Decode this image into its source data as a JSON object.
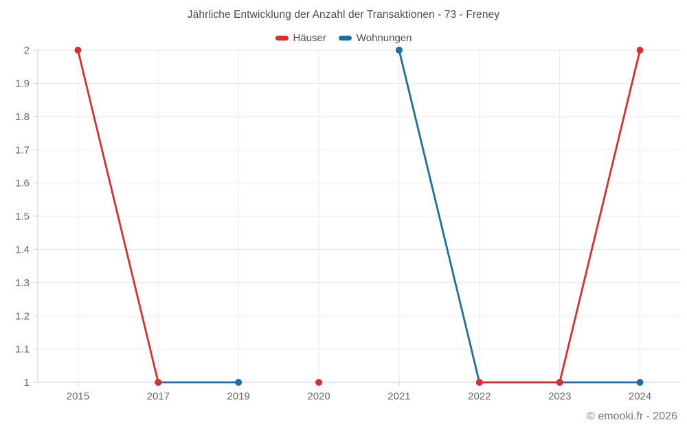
{
  "chart_data": {
    "type": "line",
    "title": "Jährliche Entwicklung der Anzahl der Transaktionen - 73 - Freney",
    "xlabel": "",
    "ylabel": "",
    "categories": [
      "2015",
      "2017",
      "2019",
      "2020",
      "2021",
      "2022",
      "2023",
      "2024"
    ],
    "series": [
      {
        "name": "Häuser",
        "color": "#d7302f",
        "values": [
          2,
          1,
          null,
          1,
          null,
          1,
          1,
          2
        ]
      },
      {
        "name": "Wohnungen",
        "color": "#1c6ea4",
        "values": [
          null,
          1,
          1,
          null,
          2,
          1,
          1,
          1
        ]
      }
    ],
    "ylim": [
      1,
      2
    ],
    "ytick_labels": [
      "1",
      "1.1",
      "1.2",
      "1.3",
      "1.4",
      "1.5",
      "1.6",
      "1.7",
      "1.8",
      "1.9",
      "2"
    ],
    "grid": true,
    "legend_position": "top",
    "footer": "© emooki.fr - 2026"
  },
  "style": {
    "grid_color": "#e9e9e9",
    "axis_color": "#cfcfcf",
    "tick_label_color": "#666666",
    "title_color": "#4c4c4c",
    "footer_color": "#757575"
  }
}
